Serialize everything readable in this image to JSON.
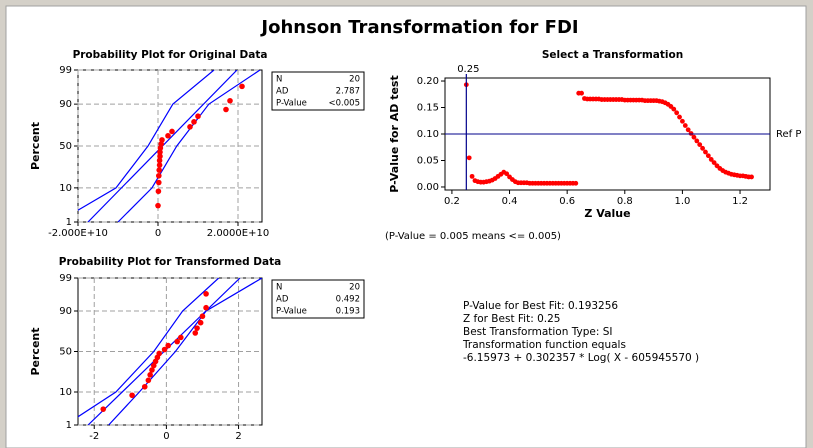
{
  "title": "Johnson Transformation for FDI",
  "chart_data": [
    {
      "type": "probability",
      "title": "Probability Plot for Original Data",
      "y_label": "Percent",
      "x": [
        0,
        100000000,
        200000000,
        200000000,
        300000000,
        400000000,
        400000000,
        500000000,
        500000000,
        600000000,
        800000000,
        1000000000,
        2500000000,
        3500000000,
        8000000000,
        9000000000,
        10000000000,
        17000000000,
        18000000000,
        21000000000
      ],
      "values": [
        3.4,
        8.3,
        13.2,
        18.1,
        23,
        27.9,
        32.8,
        37.7,
        42.6,
        47.5,
        52.5,
        57.4,
        62.3,
        67.2,
        72.1,
        77,
        81.9,
        86.8,
        91.7,
        96.6
      ],
      "color": "#ff0000",
      "line_color": "#0000ff",
      "fit_line": {
        "percent": [
          1,
          99
        ],
        "x": [
          -17500000000,
          19750000000
        ]
      },
      "ci_lower": {
        "percent": [
          1,
          10,
          50,
          90,
          99
        ],
        "x": [
          -25000000000,
          -10500000000,
          -2500000000,
          3700000000,
          14000000000
        ]
      },
      "ci_upper": {
        "percent": [
          1,
          10,
          50,
          90,
          99
        ],
        "x": [
          -10000000000,
          -1500000000,
          4700000000,
          12700000000,
          25500000000
        ]
      },
      "xlim": [
        -20000000000,
        26000000000
      ],
      "xticks": [
        {
          "value": -20000000000,
          "label": "-2.000E+10"
        },
        0,
        {
          "value": 20000000000,
          "label": "2.0000E+10"
        }
      ],
      "ylim": [
        1,
        99
      ],
      "yticks": [
        1,
        10,
        50,
        90,
        99
      ],
      "grid": true,
      "stats": {
        "labels": [
          "N",
          "AD",
          "P-Value"
        ],
        "values": [
          20,
          2.787,
          "<0.005"
        ]
      }
    },
    {
      "type": "scatter",
      "title": "Select a Transformation",
      "x_label": "Z Value",
      "y_label": "P-Value for AD test",
      "x": [
        0.25,
        0.26,
        0.27,
        0.28,
        0.29,
        0.3,
        0.31,
        0.32,
        0.33,
        0.34,
        0.35,
        0.36,
        0.37,
        0.38,
        0.39,
        0.4,
        0.41,
        0.42,
        0.43,
        0.44,
        0.45,
        0.46,
        0.47,
        0.48,
        0.49,
        0.5,
        0.51,
        0.52,
        0.53,
        0.54,
        0.55,
        0.56,
        0.57,
        0.58,
        0.59,
        0.6,
        0.61,
        0.62,
        0.63,
        0.64,
        0.65,
        0.66,
        0.67,
        0.68,
        0.69,
        0.7,
        0.71,
        0.72,
        0.73,
        0.74,
        0.75,
        0.76,
        0.77,
        0.78,
        0.79,
        0.8,
        0.81,
        0.82,
        0.83,
        0.84,
        0.85,
        0.86,
        0.87,
        0.88,
        0.89,
        0.9,
        0.91,
        0.92,
        0.93,
        0.94,
        0.95,
        0.96,
        0.97,
        0.98,
        0.99,
        1.0,
        1.01,
        1.02,
        1.03,
        1.04,
        1.05,
        1.06,
        1.07,
        1.08,
        1.09,
        1.1,
        1.11,
        1.12,
        1.13,
        1.14,
        1.15,
        1.16,
        1.17,
        1.18,
        1.19,
        1.2,
        1.21,
        1.22,
        1.23,
        1.24
      ],
      "values": [
        0.193,
        0.055,
        0.02,
        0.012,
        0.01,
        0.009,
        0.009,
        0.01,
        0.011,
        0.013,
        0.016,
        0.02,
        0.024,
        0.028,
        0.025,
        0.019,
        0.014,
        0.01,
        0.008,
        0.008,
        0.008,
        0.008,
        0.007,
        0.007,
        0.007,
        0.007,
        0.007,
        0.007,
        0.007,
        0.007,
        0.007,
        0.007,
        0.007,
        0.007,
        0.007,
        0.007,
        0.007,
        0.007,
        0.007,
        0.177,
        0.177,
        0.167,
        0.166,
        0.166,
        0.166,
        0.166,
        0.166,
        0.165,
        0.165,
        0.165,
        0.165,
        0.165,
        0.165,
        0.165,
        0.165,
        0.164,
        0.164,
        0.164,
        0.164,
        0.164,
        0.164,
        0.164,
        0.163,
        0.163,
        0.163,
        0.163,
        0.163,
        0.162,
        0.161,
        0.159,
        0.156,
        0.152,
        0.147,
        0.14,
        0.132,
        0.124,
        0.116,
        0.108,
        0.101,
        0.094,
        0.087,
        0.08,
        0.073,
        0.066,
        0.059,
        0.052,
        0.046,
        0.04,
        0.035,
        0.031,
        0.028,
        0.026,
        0.024,
        0.023,
        0.022,
        0.021,
        0.021,
        0.02,
        0.019,
        0.019
      ],
      "color": "#ff0000",
      "line_color": "#00008b",
      "xlim": [
        0.176,
        1.304
      ],
      "xticks": [
        0.2,
        0.4,
        0.6,
        0.8,
        {
          "value": 1,
          "label": "1.0"
        },
        1.2
      ],
      "ylim": [
        -0.0057,
        0.2057
      ],
      "yticks": [
        {
          "value": 0,
          "label": "0.00"
        },
        {
          "value": 0.05,
          "label": "0.05"
        },
        {
          "value": 0.1,
          "label": "0.10"
        },
        {
          "value": 0.15,
          "label": "0.15"
        },
        {
          "value": 0.2,
          "label": "0.20"
        }
      ],
      "ref_line": {
        "value": 0.1,
        "label": "Ref P"
      },
      "best_z": 0.25,
      "note": "(P-Value = 0.005 means <= 0.005)"
    },
    {
      "type": "probability",
      "title": "Probability Plot for Transformed Data",
      "y_label": "Percent",
      "x": [
        -1.75,
        -0.95,
        -0.6,
        -0.5,
        -0.45,
        -0.4,
        -0.35,
        -0.3,
        -0.25,
        -0.2,
        -0.05,
        0.05,
        0.3,
        0.4,
        0.8,
        0.85,
        0.95,
        1.0,
        1.1,
        1.1
      ],
      "values": [
        3.4,
        8.3,
        13.2,
        18.1,
        23,
        27.9,
        32.8,
        37.7,
        42.6,
        47.5,
        52.5,
        57.4,
        62.3,
        67.2,
        72.1,
        77,
        81.9,
        86.8,
        91.7,
        96.6
      ],
      "color": "#ff0000",
      "line_color": "#0000ff",
      "fit_line": {
        "percent": [
          1,
          99
        ],
        "x": [
          -2.17,
          2.04
        ]
      },
      "ci_lower": {
        "percent": [
          1,
          10,
          50,
          90,
          99
        ],
        "x": [
          -2.8,
          -1.4,
          -0.35,
          0.45,
          1.45
        ]
      },
      "ci_upper": {
        "percent": [
          1,
          10,
          50,
          90,
          99
        ],
        "x": [
          -1.6,
          -0.75,
          0.25,
          1.1,
          2.65
        ]
      },
      "xlim": [
        -2.45,
        2.65
      ],
      "xticks": [
        -2,
        0,
        2
      ],
      "ylim": [
        1,
        99
      ],
      "yticks": [
        1,
        10,
        50,
        90,
        99
      ],
      "grid": true,
      "stats": {
        "labels": [
          "N",
          "AD",
          "P-Value"
        ],
        "values": [
          20,
          0.492,
          0.193
        ]
      }
    }
  ],
  "best_fit_info": [
    "P-Value for Best Fit: 0.193256",
    "Z for Best Fit: 0.25",
    "Best Transformation Type: SI",
    "Transformation function equals",
    "-6.15973 + 0.302357 * Log( X - 605945570 )"
  ]
}
